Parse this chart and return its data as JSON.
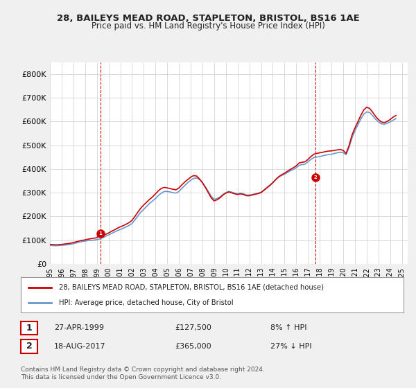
{
  "title": "28, BAILEYS MEAD ROAD, STAPLETON, BRISTOL, BS16 1AE",
  "subtitle": "Price paid vs. HM Land Registry's House Price Index (HPI)",
  "legend_line1": "28, BAILEYS MEAD ROAD, STAPLETON, BRISTOL, BS16 1AE (detached house)",
  "legend_line2": "HPI: Average price, detached house, City of Bristol",
  "annotation1_label": "1",
  "annotation1_date": "27-APR-1999",
  "annotation1_price": "£127,500",
  "annotation1_hpi": "8% ↑ HPI",
  "annotation1_year": 1999.32,
  "annotation1_value": 127500,
  "annotation2_label": "2",
  "annotation2_date": "18-AUG-2017",
  "annotation2_price": "£365,000",
  "annotation2_hpi": "27% ↓ HPI",
  "annotation2_year": 2017.63,
  "annotation2_value": 365000,
  "hpi_color": "#6699cc",
  "price_color": "#cc0000",
  "annotation_color": "#cc0000",
  "footer": "Contains HM Land Registry data © Crown copyright and database right 2024.\nThis data is licensed under the Open Government Licence v3.0.",
  "ylim": [
    0,
    850000
  ],
  "yticks": [
    0,
    100000,
    200000,
    300000,
    400000,
    500000,
    600000,
    700000,
    800000
  ],
  "ytick_labels": [
    "£0",
    "£100K",
    "£200K",
    "£300K",
    "£400K",
    "£500K",
    "£600K",
    "£700K",
    "£800K"
  ],
  "hpi_data": {
    "years": [
      1995.0,
      1995.25,
      1995.5,
      1995.75,
      1996.0,
      1996.25,
      1996.5,
      1996.75,
      1997.0,
      1997.25,
      1997.5,
      1997.75,
      1998.0,
      1998.25,
      1998.5,
      1998.75,
      1999.0,
      1999.25,
      1999.5,
      1999.75,
      2000.0,
      2000.25,
      2000.5,
      2000.75,
      2001.0,
      2001.25,
      2001.5,
      2001.75,
      2002.0,
      2002.25,
      2002.5,
      2002.75,
      2003.0,
      2003.25,
      2003.5,
      2003.75,
      2004.0,
      2004.25,
      2004.5,
      2004.75,
      2005.0,
      2005.25,
      2005.5,
      2005.75,
      2006.0,
      2006.25,
      2006.5,
      2006.75,
      2007.0,
      2007.25,
      2007.5,
      2007.75,
      2008.0,
      2008.25,
      2008.5,
      2008.75,
      2009.0,
      2009.25,
      2009.5,
      2009.75,
      2010.0,
      2010.25,
      2010.5,
      2010.75,
      2011.0,
      2011.25,
      2011.5,
      2011.75,
      2012.0,
      2012.25,
      2012.5,
      2012.75,
      2013.0,
      2013.25,
      2013.5,
      2013.75,
      2014.0,
      2014.25,
      2014.5,
      2014.75,
      2015.0,
      2015.25,
      2015.5,
      2015.75,
      2016.0,
      2016.25,
      2016.5,
      2016.75,
      2017.0,
      2017.25,
      2017.5,
      2017.75,
      2018.0,
      2018.25,
      2018.5,
      2018.75,
      2019.0,
      2019.25,
      2019.5,
      2019.75,
      2020.0,
      2020.25,
      2020.5,
      2020.75,
      2021.0,
      2021.25,
      2021.5,
      2021.75,
      2022.0,
      2022.25,
      2022.5,
      2022.75,
      2023.0,
      2023.25,
      2023.5,
      2023.75,
      2024.0,
      2024.25,
      2024.5
    ],
    "values": [
      78000,
      77000,
      76500,
      77000,
      78000,
      79000,
      80500,
      82000,
      85000,
      88000,
      91000,
      94000,
      96000,
      98000,
      99000,
      100000,
      102000,
      105000,
      110000,
      116000,
      122000,
      128000,
      134000,
      140000,
      145000,
      150000,
      156000,
      162000,
      170000,
      185000,
      202000,
      218000,
      230000,
      242000,
      255000,
      265000,
      275000,
      288000,
      298000,
      305000,
      305000,
      303000,
      300000,
      298000,
      305000,
      318000,
      330000,
      342000,
      352000,
      360000,
      362000,
      355000,
      342000,
      325000,
      305000,
      285000,
      272000,
      275000,
      282000,
      292000,
      300000,
      305000,
      302000,
      298000,
      295000,
      298000,
      295000,
      290000,
      290000,
      292000,
      295000,
      298000,
      302000,
      312000,
      322000,
      332000,
      342000,
      355000,
      365000,
      372000,
      378000,
      385000,
      392000,
      398000,
      405000,
      415000,
      418000,
      420000,
      430000,
      440000,
      448000,
      450000,
      452000,
      455000,
      458000,
      460000,
      462000,
      465000,
      468000,
      470000,
      468000,
      460000,
      490000,
      530000,
      560000,
      585000,
      610000,
      630000,
      640000,
      638000,
      625000,
      610000,
      598000,
      590000,
      588000,
      592000,
      598000,
      605000,
      612000
    ]
  },
  "price_data": {
    "years": [
      1995.0,
      1995.25,
      1995.5,
      1995.75,
      1996.0,
      1996.25,
      1996.5,
      1996.75,
      1997.0,
      1997.25,
      1997.5,
      1997.75,
      1998.0,
      1998.25,
      1998.5,
      1998.75,
      1999.0,
      1999.25,
      1999.5,
      1999.75,
      2000.0,
      2000.25,
      2000.5,
      2000.75,
      2001.0,
      2001.25,
      2001.5,
      2001.75,
      2002.0,
      2002.25,
      2002.5,
      2002.75,
      2003.0,
      2003.25,
      2003.5,
      2003.75,
      2004.0,
      2004.25,
      2004.5,
      2004.75,
      2005.0,
      2005.25,
      2005.5,
      2005.75,
      2006.0,
      2006.25,
      2006.5,
      2006.75,
      2007.0,
      2007.25,
      2007.5,
      2007.75,
      2008.0,
      2008.25,
      2008.5,
      2008.75,
      2009.0,
      2009.25,
      2009.5,
      2009.75,
      2010.0,
      2010.25,
      2010.5,
      2010.75,
      2011.0,
      2011.25,
      2011.5,
      2011.75,
      2012.0,
      2012.25,
      2012.5,
      2012.75,
      2013.0,
      2013.25,
      2013.5,
      2013.75,
      2014.0,
      2014.25,
      2014.5,
      2014.75,
      2015.0,
      2015.25,
      2015.5,
      2015.75,
      2016.0,
      2016.25,
      2016.5,
      2016.75,
      2017.0,
      2017.25,
      2017.5,
      2017.75,
      2018.0,
      2018.25,
      2018.5,
      2018.75,
      2019.0,
      2019.25,
      2019.5,
      2019.75,
      2020.0,
      2020.25,
      2020.5,
      2020.75,
      2021.0,
      2021.25,
      2021.5,
      2021.75,
      2022.0,
      2022.25,
      2022.5,
      2022.75,
      2023.0,
      2023.25,
      2023.5,
      2023.75,
      2024.0,
      2024.25,
      2024.5
    ],
    "values": [
      82000,
      81000,
      80000,
      80500,
      82000,
      83500,
      85000,
      87000,
      90000,
      93000,
      96500,
      99000,
      101000,
      104000,
      106000,
      108000,
      110000,
      127500,
      118000,
      124000,
      130000,
      137000,
      143000,
      150000,
      156000,
      161000,
      167000,
      174000,
      183000,
      200000,
      218000,
      235000,
      248000,
      260000,
      272000,
      282000,
      295000,
      308000,
      318000,
      322000,
      320000,
      317000,
      314000,
      312000,
      320000,
      333000,
      345000,
      355000,
      365000,
      372000,
      370000,
      358000,
      342000,
      322000,
      300000,
      278000,
      265000,
      270000,
      278000,
      290000,
      298000,
      303000,
      299000,
      295000,
      292000,
      295000,
      292000,
      287000,
      287000,
      290000,
      293000,
      296000,
      300000,
      310000,
      320000,
      330000,
      342000,
      355000,
      367000,
      375000,
      382000,
      390000,
      398000,
      405000,
      413000,
      425000,
      428000,
      430000,
      440000,
      452000,
      462000,
      465000,
      468000,
      470000,
      473000,
      475000,
      476000,
      478000,
      480000,
      482000,
      478000,
      465000,
      498000,
      542000,
      572000,
      598000,
      625000,
      648000,
      660000,
      655000,
      640000,
      622000,
      608000,
      598000,
      595000,
      600000,
      608000,
      618000,
      625000
    ]
  },
  "xtick_years": [
    1995,
    1996,
    1997,
    1998,
    1999,
    2000,
    2001,
    2002,
    2003,
    2004,
    2005,
    2006,
    2007,
    2008,
    2009,
    2010,
    2011,
    2012,
    2013,
    2014,
    2015,
    2016,
    2017,
    2018,
    2019,
    2020,
    2021,
    2022,
    2023,
    2024,
    2025
  ],
  "background_color": "#f0f0f0",
  "plot_bg_color": "#ffffff"
}
